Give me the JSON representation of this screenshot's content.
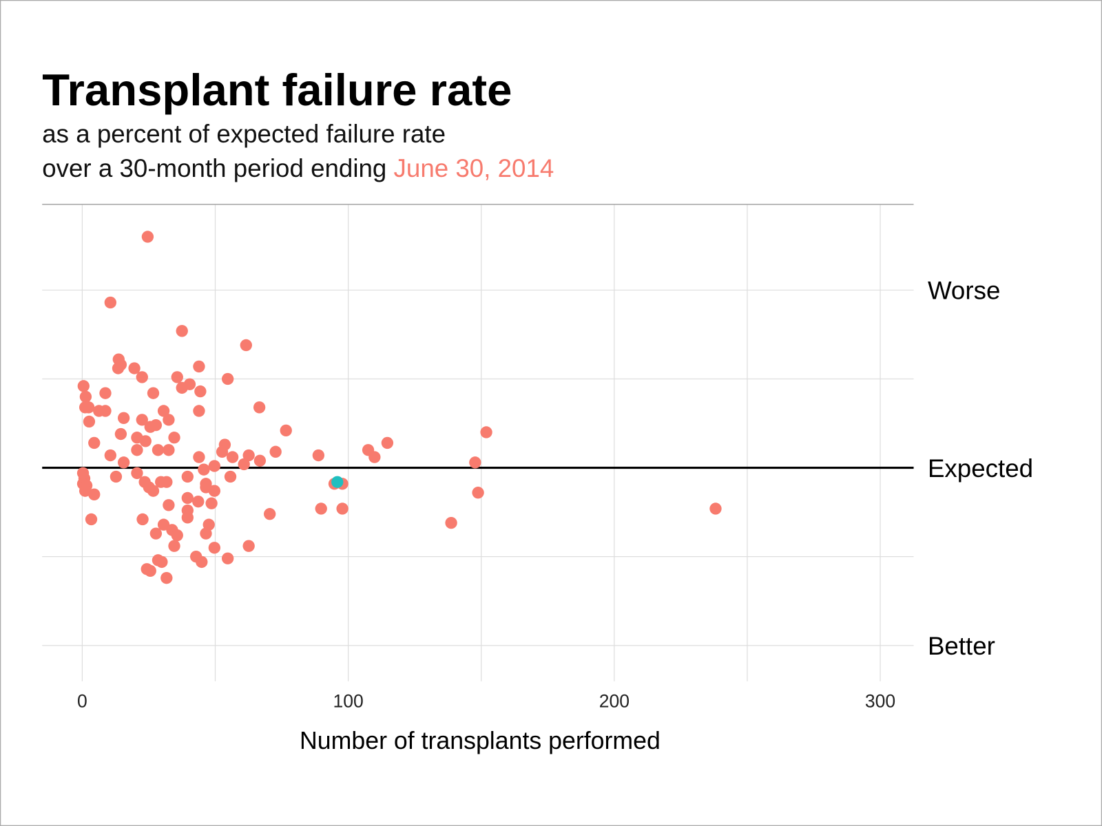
{
  "chart_data": {
    "type": "scatter",
    "title": "Transplant failure rate",
    "subtitle_line1": "as a percent of expected failure rate",
    "subtitle_line2_prefix": "over a 30-month period ending ",
    "subtitle_date": "June 30, 2014",
    "xlabel": "Number of transplants performed",
    "ylabel": "",
    "xlim": [
      -15,
      313
    ],
    "ylim": [
      -20,
      248
    ],
    "x_ticks": [
      0,
      100,
      200,
      300
    ],
    "x_tick_labels": [
      "0",
      "100",
      "200",
      "300"
    ],
    "x_grid": [
      0,
      50,
      100,
      150,
      200,
      250,
      300
    ],
    "y_grid": [
      0,
      50,
      150,
      200
    ],
    "y_labels": [
      {
        "value": 200,
        "text": "Worse"
      },
      {
        "value": 100,
        "text": "Expected"
      },
      {
        "value": 0,
        "text": "Better"
      }
    ],
    "reference_line": 100,
    "grid": true,
    "colors": {
      "points": "#f77b6e",
      "highlight": "#1fbfbf",
      "date": "#f77b6e",
      "reference": "#000000",
      "grid": "#dddddd"
    },
    "points": [
      [
        24.6,
        230
      ],
      [
        10.6,
        193
      ],
      [
        37.5,
        177
      ],
      [
        61.6,
        169
      ],
      [
        13.7,
        161
      ],
      [
        14.5,
        158
      ],
      [
        13.5,
        156
      ],
      [
        19.6,
        156
      ],
      [
        43.9,
        157
      ],
      [
        22.5,
        151
      ],
      [
        35.7,
        151
      ],
      [
        54.7,
        150
      ],
      [
        0.5,
        146
      ],
      [
        40.4,
        147
      ],
      [
        37.5,
        145
      ],
      [
        8.7,
        142
      ],
      [
        26.7,
        142
      ],
      [
        44.4,
        143
      ],
      [
        1.3,
        140
      ],
      [
        1.1,
        134
      ],
      [
        2.4,
        134
      ],
      [
        6.3,
        132
      ],
      [
        8.7,
        132
      ],
      [
        30.6,
        132
      ],
      [
        43.9,
        132
      ],
      [
        66.6,
        134
      ],
      [
        15.6,
        128
      ],
      [
        22.5,
        127
      ],
      [
        32.5,
        127
      ],
      [
        2.6,
        126
      ],
      [
        27.7,
        124
      ],
      [
        25.6,
        123
      ],
      [
        76.6,
        121
      ],
      [
        151.9,
        120
      ],
      [
        14.5,
        119
      ],
      [
        34.6,
        117
      ],
      [
        20.6,
        117
      ],
      [
        23.8,
        115
      ],
      [
        4.5,
        114
      ],
      [
        53.6,
        113
      ],
      [
        114.7,
        114
      ],
      [
        28.5,
        110
      ],
      [
        20.6,
        110
      ],
      [
        32.5,
        110
      ],
      [
        52.6,
        109
      ],
      [
        72.7,
        109
      ],
      [
        107.5,
        110
      ],
      [
        10.6,
        107
      ],
      [
        43.9,
        106
      ],
      [
        62.6,
        107
      ],
      [
        56.5,
        106
      ],
      [
        88.8,
        107
      ],
      [
        109.9,
        106
      ],
      [
        66.8,
        104
      ],
      [
        60.8,
        102
      ],
      [
        15.6,
        103
      ],
      [
        49.7,
        101
      ],
      [
        147.7,
        103
      ],
      [
        45.7,
        99
      ],
      [
        0.3,
        97
      ],
      [
        20.6,
        97
      ],
      [
        0.8,
        94
      ],
      [
        12.7,
        95
      ],
      [
        39.6,
        95
      ],
      [
        29.6,
        92
      ],
      [
        31.7,
        92
      ],
      [
        23.5,
        92
      ],
      [
        55.7,
        95
      ],
      [
        46.5,
        91
      ],
      [
        0.3,
        91
      ],
      [
        1.6,
        90
      ],
      [
        25.1,
        89
      ],
      [
        46.5,
        89
      ],
      [
        49.7,
        87
      ],
      [
        94.8,
        91
      ],
      [
        97.8,
        91
      ],
      [
        1.1,
        87
      ],
      [
        26.7,
        87
      ],
      [
        4.5,
        85
      ],
      [
        148.8,
        86
      ],
      [
        32.5,
        79
      ],
      [
        48.6,
        80
      ],
      [
        39.6,
        83
      ],
      [
        43.6,
        81
      ],
      [
        39.6,
        76
      ],
      [
        89.8,
        77
      ],
      [
        97.8,
        77
      ],
      [
        238.1,
        77
      ],
      [
        70.5,
        74
      ],
      [
        39.6,
        72
      ],
      [
        3.4,
        71
      ],
      [
        22.7,
        71
      ],
      [
        47.6,
        68
      ],
      [
        30.6,
        68
      ],
      [
        138.7,
        69
      ],
      [
        33.8,
        65
      ],
      [
        46.5,
        63
      ],
      [
        27.7,
        63
      ],
      [
        35.7,
        62
      ],
      [
        34.6,
        56
      ],
      [
        62.6,
        56
      ],
      [
        49.7,
        55
      ],
      [
        54.7,
        49
      ],
      [
        42.8,
        50
      ],
      [
        44.9,
        47
      ],
      [
        28.5,
        48
      ],
      [
        29.9,
        47
      ],
      [
        24.3,
        43
      ],
      [
        25.6,
        42
      ],
      [
        31.7,
        38
      ]
    ],
    "highlight_point": [
      95.9,
      92
    ]
  }
}
